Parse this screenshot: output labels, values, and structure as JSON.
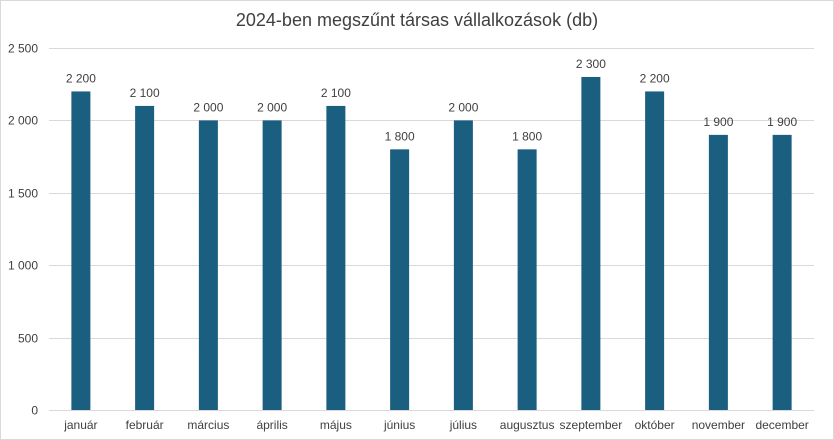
{
  "chart_data": {
    "type": "bar",
    "title": "2024-ben megszűnt társas vállalkozások (db)",
    "xlabel": "",
    "ylabel": "",
    "categories": [
      "január",
      "február",
      "március",
      "április",
      "május",
      "június",
      "július",
      "augusztus",
      "szeptember",
      "október",
      "november",
      "december"
    ],
    "values": [
      2200,
      2100,
      2000,
      2000,
      2100,
      1800,
      2000,
      1800,
      2300,
      2200,
      1900,
      1900
    ],
    "value_labels": [
      "2 200",
      "2 100",
      "2 000",
      "2 000",
      "2 100",
      "1 800",
      "2 000",
      "1 800",
      "2 300",
      "2 200",
      "1 900",
      "1 900"
    ],
    "yticks": [
      0,
      500,
      1000,
      1500,
      2000,
      2500
    ],
    "ytick_labels": [
      "0",
      "500",
      "1 000",
      "1 500",
      "2 000",
      "2 500"
    ],
    "ylim": [
      0,
      2500
    ],
    "grid": true,
    "legend": "none",
    "bar_color": "#1a5e80",
    "grid_color": "#d9d9d9"
  }
}
